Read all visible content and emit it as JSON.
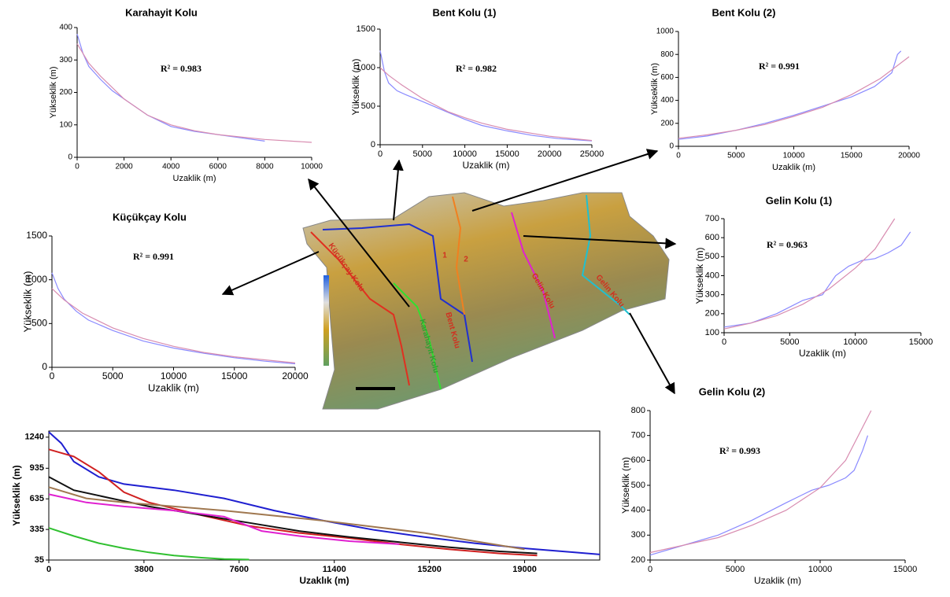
{
  "chart_data": [
    {
      "type": "line",
      "title": "Karahayit Kolu",
      "xlabel": "Uzaklik (m)",
      "ylabel": "Yükseklik (m)",
      "annotation": "R² = 0.983",
      "xlim": [
        0,
        10000
      ],
      "xticks": [
        0,
        2000,
        4000,
        6000,
        8000,
        10000
      ],
      "ylim": [
        0,
        400
      ],
      "yticks": [
        0,
        100,
        200,
        300,
        400
      ],
      "series": [
        {
          "color": "#8a8aff",
          "x": [
            0,
            250,
            500,
            1000,
            1500,
            2000,
            3000,
            4000,
            5000,
            6000,
            7000,
            8000
          ],
          "values": [
            380,
            320,
            280,
            240,
            205,
            180,
            130,
            95,
            80,
            70,
            60,
            50
          ]
        },
        {
          "color": "#d88cb0",
          "x": [
            0,
            500,
            1000,
            2000,
            3000,
            4000,
            5000,
            6000,
            8000,
            10000
          ],
          "values": [
            350,
            290,
            250,
            180,
            130,
            100,
            82,
            70,
            55,
            46
          ]
        }
      ]
    },
    {
      "type": "line",
      "title": "Bent Kolu (1)",
      "xlabel": "Uzaklik (m)",
      "ylabel": "Yükseklik (m)",
      "annotation": "R² = 0.982",
      "xlim": [
        0,
        25000
      ],
      "xticks": [
        0,
        5000,
        10000,
        15000,
        20000,
        25000
      ],
      "ylim": [
        0,
        1500
      ],
      "yticks": [
        0,
        500,
        1000,
        1500
      ],
      "series": [
        {
          "color": "#8a8aff",
          "x": [
            0,
            500,
            1000,
            2000,
            3000,
            5000,
            8000,
            10000,
            12000,
            15000,
            18000,
            21000,
            25000
          ],
          "values": [
            1220,
            950,
            800,
            700,
            650,
            560,
            420,
            330,
            250,
            180,
            120,
            80,
            50
          ]
        },
        {
          "color": "#d88cb0",
          "x": [
            0,
            1000,
            2500,
            5000,
            8000,
            10000,
            12000,
            15000,
            20000,
            25000
          ],
          "values": [
            1000,
            900,
            780,
            600,
            430,
            350,
            280,
            200,
            110,
            55
          ]
        }
      ]
    },
    {
      "type": "line",
      "title": "Bent Kolu (2)",
      "xlabel": "Uzaklik (m)",
      "ylabel": "Yükseklik (m)",
      "annotation": "R² = 0.991",
      "xlim": [
        0,
        20000
      ],
      "xticks": [
        0,
        5000,
        10000,
        15000,
        20000
      ],
      "ylim": [
        0,
        1000
      ],
      "yticks": [
        0,
        200,
        400,
        600,
        800,
        1000
      ],
      "series": [
        {
          "color": "#8a8aff",
          "x": [
            0,
            2500,
            5000,
            7500,
            10000,
            12500,
            15000,
            17000,
            18500,
            19000,
            19300
          ],
          "values": [
            60,
            90,
            140,
            200,
            270,
            350,
            430,
            520,
            640,
            800,
            830
          ]
        },
        {
          "color": "#d88cb0",
          "x": [
            0,
            2500,
            5000,
            7500,
            10000,
            12500,
            15000,
            17500,
            20000
          ],
          "values": [
            70,
            100,
            140,
            190,
            260,
            340,
            450,
            590,
            780
          ]
        }
      ]
    },
    {
      "type": "line",
      "title": "Küçükçay Kolu",
      "xlabel": "Uzaklik (m)",
      "ylabel": "Yükseklik (m)",
      "annotation": "R² = 0.991",
      "xlim": [
        0,
        20000
      ],
      "xticks": [
        0,
        5000,
        10000,
        15000,
        20000
      ],
      "ylim": [
        0,
        1500
      ],
      "yticks": [
        0,
        500,
        1000,
        1500
      ],
      "series": [
        {
          "color": "#8a8aff",
          "x": [
            0,
            500,
            1000,
            2000,
            3000,
            5000,
            7500,
            10000,
            12500,
            15000,
            17500,
            20000
          ],
          "values": [
            1080,
            900,
            780,
            640,
            540,
            420,
            300,
            220,
            160,
            110,
            70,
            40
          ]
        },
        {
          "color": "#d88cb0",
          "x": [
            0,
            1000,
            2500,
            5000,
            7500,
            10000,
            12500,
            15000,
            20000
          ],
          "values": [
            900,
            770,
            620,
            450,
            330,
            240,
            170,
            120,
            50
          ]
        }
      ]
    },
    {
      "type": "line",
      "title": "Gelin Kolu (1)",
      "xlabel": "Uzaklik (m)",
      "ylabel": "Yükseklik (m)",
      "annotation": "R² = 0.963",
      "xlim": [
        0,
        15000
      ],
      "xticks": [
        0,
        5000,
        10000,
        15000
      ],
      "ylim": [
        100,
        700
      ],
      "yticks": [
        100,
        200,
        300,
        400,
        500,
        600,
        700
      ],
      "series": [
        {
          "color": "#8a8aff",
          "x": [
            0,
            2000,
            4000,
            6000,
            7500,
            8500,
            9500,
            10500,
            11500,
            12500,
            13500,
            14200
          ],
          "values": [
            130,
            150,
            200,
            270,
            300,
            400,
            450,
            480,
            490,
            520,
            560,
            630
          ]
        },
        {
          "color": "#d88cb0",
          "x": [
            0,
            2000,
            4000,
            6000,
            8000,
            10000,
            11500,
            13000
          ],
          "values": [
            120,
            150,
            190,
            250,
            330,
            440,
            540,
            700
          ]
        }
      ]
    },
    {
      "type": "line",
      "title": "Gelin Kolu (2)",
      "xlabel": "Uzaklik (m)",
      "ylabel": "Yükseklik (m)",
      "annotation": "R² = 0.993",
      "xlim": [
        0,
        15000
      ],
      "xticks": [
        0,
        5000,
        10000,
        15000
      ],
      "ylim": [
        200,
        800
      ],
      "yticks": [
        200,
        300,
        400,
        500,
        600,
        700,
        800
      ],
      "series": [
        {
          "color": "#8a8aff",
          "x": [
            0,
            2000,
            4000,
            6000,
            8000,
            9500,
            10500,
            11500,
            12000,
            12500,
            12800
          ],
          "values": [
            220,
            260,
            300,
            360,
            430,
            480,
            500,
            530,
            560,
            640,
            700
          ]
        },
        {
          "color": "#d88cb0",
          "x": [
            0,
            2000,
            4000,
            6000,
            8000,
            10000,
            11500,
            13000
          ],
          "values": [
            230,
            260,
            290,
            340,
            400,
            490,
            600,
            800
          ]
        }
      ]
    },
    {
      "type": "line",
      "xlabel": "Uzaklık (m)",
      "ylabel": "Yükseklik (m)",
      "xlim": [
        0,
        22000
      ],
      "xticks": [
        0,
        3800,
        7600,
        11400,
        15200,
        19000
      ],
      "ylim": [
        35,
        1300
      ],
      "yticks": [
        35,
        335,
        635,
        935,
        1240
      ],
      "series": [
        {
          "color": "#1f1fd0",
          "x": [
            0,
            500,
            1000,
            2000,
            3000,
            5000,
            7000,
            9000,
            11000,
            13000,
            15000,
            17000,
            19000,
            21000,
            22000
          ],
          "values": [
            1290,
            1180,
            1000,
            850,
            780,
            720,
            640,
            520,
            420,
            330,
            260,
            200,
            150,
            110,
            90
          ]
        },
        {
          "color": "#d02020",
          "x": [
            0,
            1000,
            2000,
            3000,
            4000,
            6000,
            8000,
            10000,
            12000,
            14000,
            16000,
            18000,
            19500
          ],
          "values": [
            1120,
            1050,
            900,
            700,
            600,
            480,
            370,
            300,
            250,
            190,
            140,
            100,
            80
          ]
        },
        {
          "color": "#111111",
          "x": [
            0,
            1000,
            2500,
            4000,
            6000,
            8000,
            10000,
            12000,
            14000,
            16000,
            18000,
            19500
          ],
          "values": [
            850,
            720,
            640,
            560,
            480,
            400,
            320,
            260,
            210,
            160,
            120,
            100
          ]
        },
        {
          "color": "#a07850",
          "x": [
            0,
            1500,
            3000,
            5000,
            7000,
            9000,
            11000,
            13000,
            15000,
            17000,
            19000
          ],
          "values": [
            750,
            640,
            600,
            560,
            520,
            470,
            420,
            360,
            300,
            220,
            140
          ]
        },
        {
          "color": "#e020d0",
          "x": [
            0,
            1500,
            3000,
            5000,
            7000,
            8500,
            10000,
            12000,
            14000
          ],
          "values": [
            680,
            600,
            560,
            520,
            460,
            320,
            270,
            220,
            190
          ]
        },
        {
          "color": "#30c030",
          "x": [
            0,
            1000,
            2000,
            3000,
            4000,
            5000,
            6000,
            7000,
            8000
          ],
          "values": [
            350,
            270,
            200,
            150,
            110,
            80,
            60,
            45,
            40
          ]
        }
      ]
    }
  ],
  "map": {
    "labels": [
      "Küçükçay Kolu",
      "Karahayit Kolu",
      "Bent Kolu",
      "1",
      "2",
      "Gelin Kolu",
      "Gelin Kolu"
    ]
  }
}
